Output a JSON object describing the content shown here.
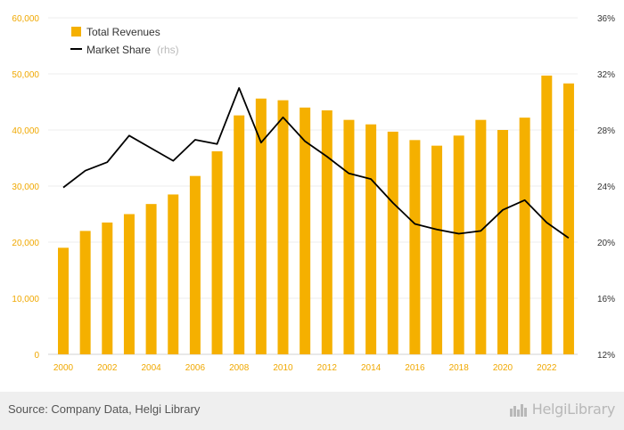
{
  "colors": {
    "bar": "#f5b000",
    "line": "#000000",
    "left_axis": "#f0a800",
    "grid": "#ececec"
  },
  "chart_data": {
    "type": "bar+line",
    "x": [
      2000,
      2001,
      2002,
      2003,
      2004,
      2005,
      2006,
      2007,
      2008,
      2009,
      2010,
      2011,
      2012,
      2013,
      2014,
      2015,
      2016,
      2017,
      2018,
      2019,
      2020,
      2021,
      2022,
      2023
    ],
    "x_tick_labels": [
      "2000",
      "2002",
      "2004",
      "2006",
      "2008",
      "2010",
      "2012",
      "2014",
      "2016",
      "2018",
      "2020",
      "2022"
    ],
    "series": [
      {
        "name": "Total Revenues",
        "axis": "left",
        "kind": "bar",
        "values": [
          19000,
          22000,
          23500,
          25000,
          26800,
          28500,
          31800,
          36200,
          42600,
          45600,
          45300,
          44000,
          43500,
          41800,
          41000,
          39700,
          38200,
          37200,
          39000,
          41800,
          40000,
          42200,
          49700,
          48300
        ]
      },
      {
        "name": "Market Share",
        "axis": "right",
        "kind": "line",
        "values": [
          23.9,
          25.1,
          25.7,
          27.6,
          26.7,
          25.8,
          27.3,
          27.0,
          31.0,
          27.1,
          28.9,
          27.2,
          26.1,
          24.9,
          24.5,
          22.8,
          21.3,
          20.9,
          20.6,
          20.8,
          22.3,
          23.0,
          21.4,
          20.3
        ]
      }
    ],
    "y_left": {
      "min": 0,
      "max": 60000,
      "ticks": [
        "0",
        "10,000",
        "20,000",
        "30,000",
        "40,000",
        "50,000",
        "60,000"
      ]
    },
    "y_right": {
      "min": 12,
      "max": 36,
      "ticks": [
        "12%",
        "16%",
        "20%",
        "24%",
        "28%",
        "32%",
        "36%"
      ]
    },
    "legend": [
      {
        "label": "Total Revenues",
        "suffix": ""
      },
      {
        "label": "Market Share",
        "suffix": "(rhs)"
      }
    ],
    "legend_position": "top-left",
    "grid": true
  },
  "footer": {
    "source": "Source: Company Data, Helgi Library",
    "brand": "HelgiLibrary"
  }
}
